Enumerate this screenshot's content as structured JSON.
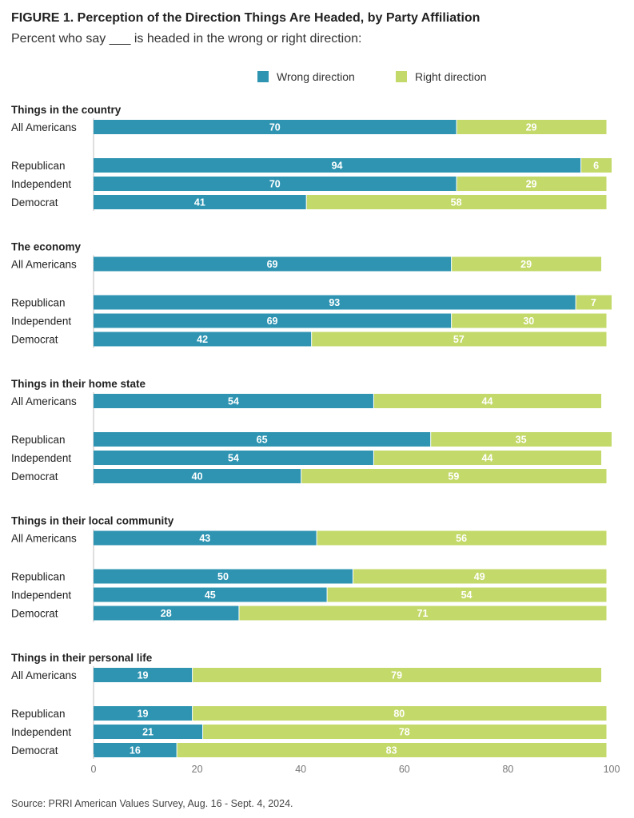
{
  "header": {
    "title": "FIGURE 1.  Perception of the Direction Things Are Headed, by Party Affiliation",
    "subtitle": "Percent who say ___ is headed in the wrong or right direction:"
  },
  "footer": {
    "source": "Source: PRRI American Values Survey, Aug. 16 - Sept. 4, 2024."
  },
  "colors": {
    "wrong": "#2e94b2",
    "right": "#c3d96a",
    "axis": "#bfbfbf"
  },
  "chart_data": {
    "type": "bar",
    "orientation": "horizontal",
    "stacked": true,
    "xlim": [
      0,
      100
    ],
    "xticks": [
      0,
      20,
      40,
      60,
      80,
      100
    ],
    "legend_position": "top-right",
    "series_names": [
      "Wrong direction",
      "Right direction"
    ],
    "groups": [
      {
        "title": "Things in the country",
        "rows": [
          {
            "label": "All Americans",
            "wrong": 70,
            "right": 29
          },
          {
            "label": "Republican",
            "wrong": 94,
            "right": 6
          },
          {
            "label": "Independent",
            "wrong": 70,
            "right": 29
          },
          {
            "label": "Democrat",
            "wrong": 41,
            "right": 58
          }
        ]
      },
      {
        "title": "The economy",
        "rows": [
          {
            "label": "All Americans",
            "wrong": 69,
            "right": 29
          },
          {
            "label": "Republican",
            "wrong": 93,
            "right": 7
          },
          {
            "label": "Independent",
            "wrong": 69,
            "right": 30
          },
          {
            "label": "Democrat",
            "wrong": 42,
            "right": 57
          }
        ]
      },
      {
        "title": "Things in their home state",
        "rows": [
          {
            "label": "All Americans",
            "wrong": 54,
            "right": 44
          },
          {
            "label": "Republican",
            "wrong": 65,
            "right": 35
          },
          {
            "label": "Independent",
            "wrong": 54,
            "right": 44
          },
          {
            "label": "Democrat",
            "wrong": 40,
            "right": 59
          }
        ]
      },
      {
        "title": "Things in their local community",
        "rows": [
          {
            "label": "All Americans",
            "wrong": 43,
            "right": 56
          },
          {
            "label": "Republican",
            "wrong": 50,
            "right": 49
          },
          {
            "label": "Independent",
            "wrong": 45,
            "right": 54
          },
          {
            "label": "Democrat",
            "wrong": 28,
            "right": 71
          }
        ]
      },
      {
        "title": "Things in their personal life",
        "rows": [
          {
            "label": "All Americans",
            "wrong": 19,
            "right": 79
          },
          {
            "label": "Republican",
            "wrong": 19,
            "right": 80
          },
          {
            "label": "Independent",
            "wrong": 21,
            "right": 78
          },
          {
            "label": "Democrat",
            "wrong": 16,
            "right": 83
          }
        ]
      }
    ]
  }
}
